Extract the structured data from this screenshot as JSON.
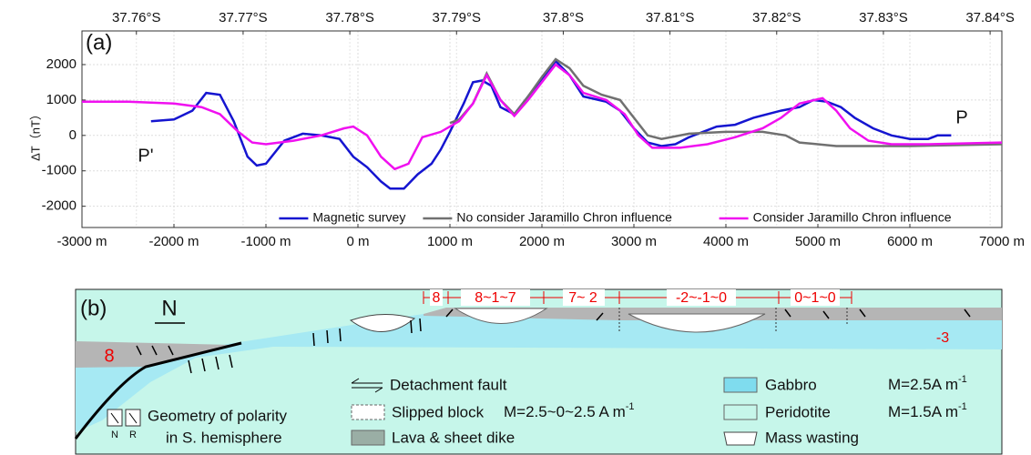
{
  "chart_data": {
    "type": "line",
    "panel_label": "(a)",
    "ylabel": "ΔT（nT）",
    "xlim": [
      -3000,
      7000
    ],
    "ylim": [
      -2600,
      2950
    ],
    "xticks": [
      {
        "value": -3000,
        "label": "-3000 m"
      },
      {
        "value": -2000,
        "label": "-2000 m"
      },
      {
        "value": -1000,
        "label": "-1000 m"
      },
      {
        "value": 0,
        "label": "0 m"
      },
      {
        "value": 1000,
        "label": "1000 m"
      },
      {
        "value": 2000,
        "label": "2000 m"
      },
      {
        "value": 3000,
        "label": "3000 m"
      },
      {
        "value": 4000,
        "label": "4000 m"
      },
      {
        "value": 5000,
        "label": "5000 m"
      },
      {
        "value": 6000,
        "label": "6000 m"
      },
      {
        "value": 7000,
        "label": "7000 m"
      }
    ],
    "yticks": [
      -2000,
      -1000,
      0,
      1000,
      2000
    ],
    "x2lim": [
      37.7549,
      37.8411
    ],
    "x2ticks": [
      {
        "value": 37.76,
        "label": "37.76°S"
      },
      {
        "value": 37.77,
        "label": "37.77°S"
      },
      {
        "value": 37.78,
        "label": "37.78°S"
      },
      {
        "value": 37.79,
        "label": "37.79°S"
      },
      {
        "value": 37.8,
        "label": "37.8°S"
      },
      {
        "value": 37.81,
        "label": "37.81°S"
      },
      {
        "value": 37.82,
        "label": "37.82°S"
      },
      {
        "value": 37.83,
        "label": "37.83°S"
      },
      {
        "value": 37.84,
        "label": "37.84°S"
      }
    ],
    "grid": true,
    "legend_position": "lower right",
    "annotations": [
      "P'",
      "P"
    ],
    "series": [
      {
        "name": "Magnetic survey",
        "color": "#1515d0",
        "x": [
          -2250,
          -2000,
          -1800,
          -1650,
          -1500,
          -1350,
          -1200,
          -1100,
          -1000,
          -800,
          -600,
          -400,
          -200,
          -50,
          100,
          250,
          350,
          500,
          650,
          800,
          900,
          1000,
          1150,
          1250,
          1350,
          1450,
          1550,
          1700,
          1850,
          2000,
          2150,
          2300,
          2450,
          2700,
          2850,
          3000,
          3150,
          3300,
          3450,
          3600,
          3750,
          3900,
          4100,
          4300,
          4600,
          4800,
          4950,
          5100,
          5250,
          5400,
          5600,
          5800,
          6000,
          6200,
          6300,
          6450
        ],
        "values": [
          400,
          450,
          700,
          1200,
          1150,
          400,
          -600,
          -850,
          -800,
          -150,
          50,
          0,
          -100,
          -600,
          -900,
          -1300,
          -1500,
          -1500,
          -1100,
          -800,
          -400,
          100,
          900,
          1500,
          1550,
          1400,
          800,
          600,
          1100,
          1600,
          2100,
          1700,
          1100,
          950,
          700,
          200,
          -200,
          -300,
          -250,
          -50,
          100,
          250,
          300,
          500,
          700,
          800,
          1000,
          950,
          800,
          500,
          200,
          0,
          -100,
          -100,
          0,
          0
        ]
      },
      {
        "name": "No consider Jaramillo Chron influence",
        "color": "#707070",
        "x": [
          1000,
          1100,
          1250,
          1400,
          1550,
          1700,
          1850,
          2000,
          2150,
          2300,
          2450,
          2650,
          2850,
          3000,
          3150,
          3300,
          3600,
          4000,
          4400,
          4650,
          4800,
          5200,
          6000,
          7000
        ],
        "values": [
          350,
          450,
          900,
          1750,
          1000,
          600,
          1100,
          1650,
          2150,
          1900,
          1400,
          1150,
          1000,
          500,
          0,
          -100,
          50,
          100,
          100,
          0,
          -200,
          -300,
          -300,
          -250
        ]
      },
      {
        "name": "Consider Jaramillo Chron influence",
        "color": "#f010f0",
        "x": [
          -3000,
          -2500,
          -2000,
          -1700,
          -1500,
          -1300,
          -1150,
          -1000,
          -700,
          -400,
          -150,
          -50,
          100,
          250,
          400,
          550,
          700,
          900,
          1100,
          1250,
          1400,
          1550,
          1700,
          1850,
          2000,
          2150,
          2300,
          2450,
          2700,
          2900,
          3050,
          3200,
          3500,
          3800,
          4100,
          4400,
          4600,
          4800,
          5050,
          5200,
          5350,
          5550,
          5800,
          6200,
          7000
        ],
        "values": [
          950,
          950,
          900,
          800,
          600,
          100,
          -200,
          -250,
          -150,
          0,
          200,
          250,
          0,
          -600,
          -950,
          -800,
          -50,
          100,
          400,
          900,
          1700,
          1000,
          550,
          1000,
          1500,
          2000,
          1700,
          1200,
          1000,
          600,
          0,
          -350,
          -350,
          -250,
          -50,
          200,
          500,
          900,
          1050,
          700,
          200,
          -150,
          -250,
          -250,
          -200
        ]
      }
    ]
  },
  "diagram": {
    "panel_label": "(b)",
    "north": "N",
    "left_value": "8",
    "segment_values": [
      "8",
      "8~1~7",
      "7~ 2",
      "-2~-1~0",
      "0~1~0"
    ],
    "right_value": "-3",
    "polarity": {
      "line1": "Geometry of polarity",
      "line2": "in S. hemisphere",
      "n": "N",
      "r": "R"
    },
    "legend": {
      "detachment": "Detachment fault",
      "slipped": "Slipped block",
      "slipped_m": "M=2.5~0~2.5 A m",
      "slipped_exp": "-1",
      "lava": "Lava & sheet dike",
      "gabbro": "Gabbro",
      "gabbro_m": "M=2.5A m",
      "gabbro_exp": "-1",
      "peridotite": "Peridotite",
      "peridotite_m": "M=1.5A m",
      "peridotite_exp": "-1",
      "mass": "Mass wasting"
    }
  }
}
